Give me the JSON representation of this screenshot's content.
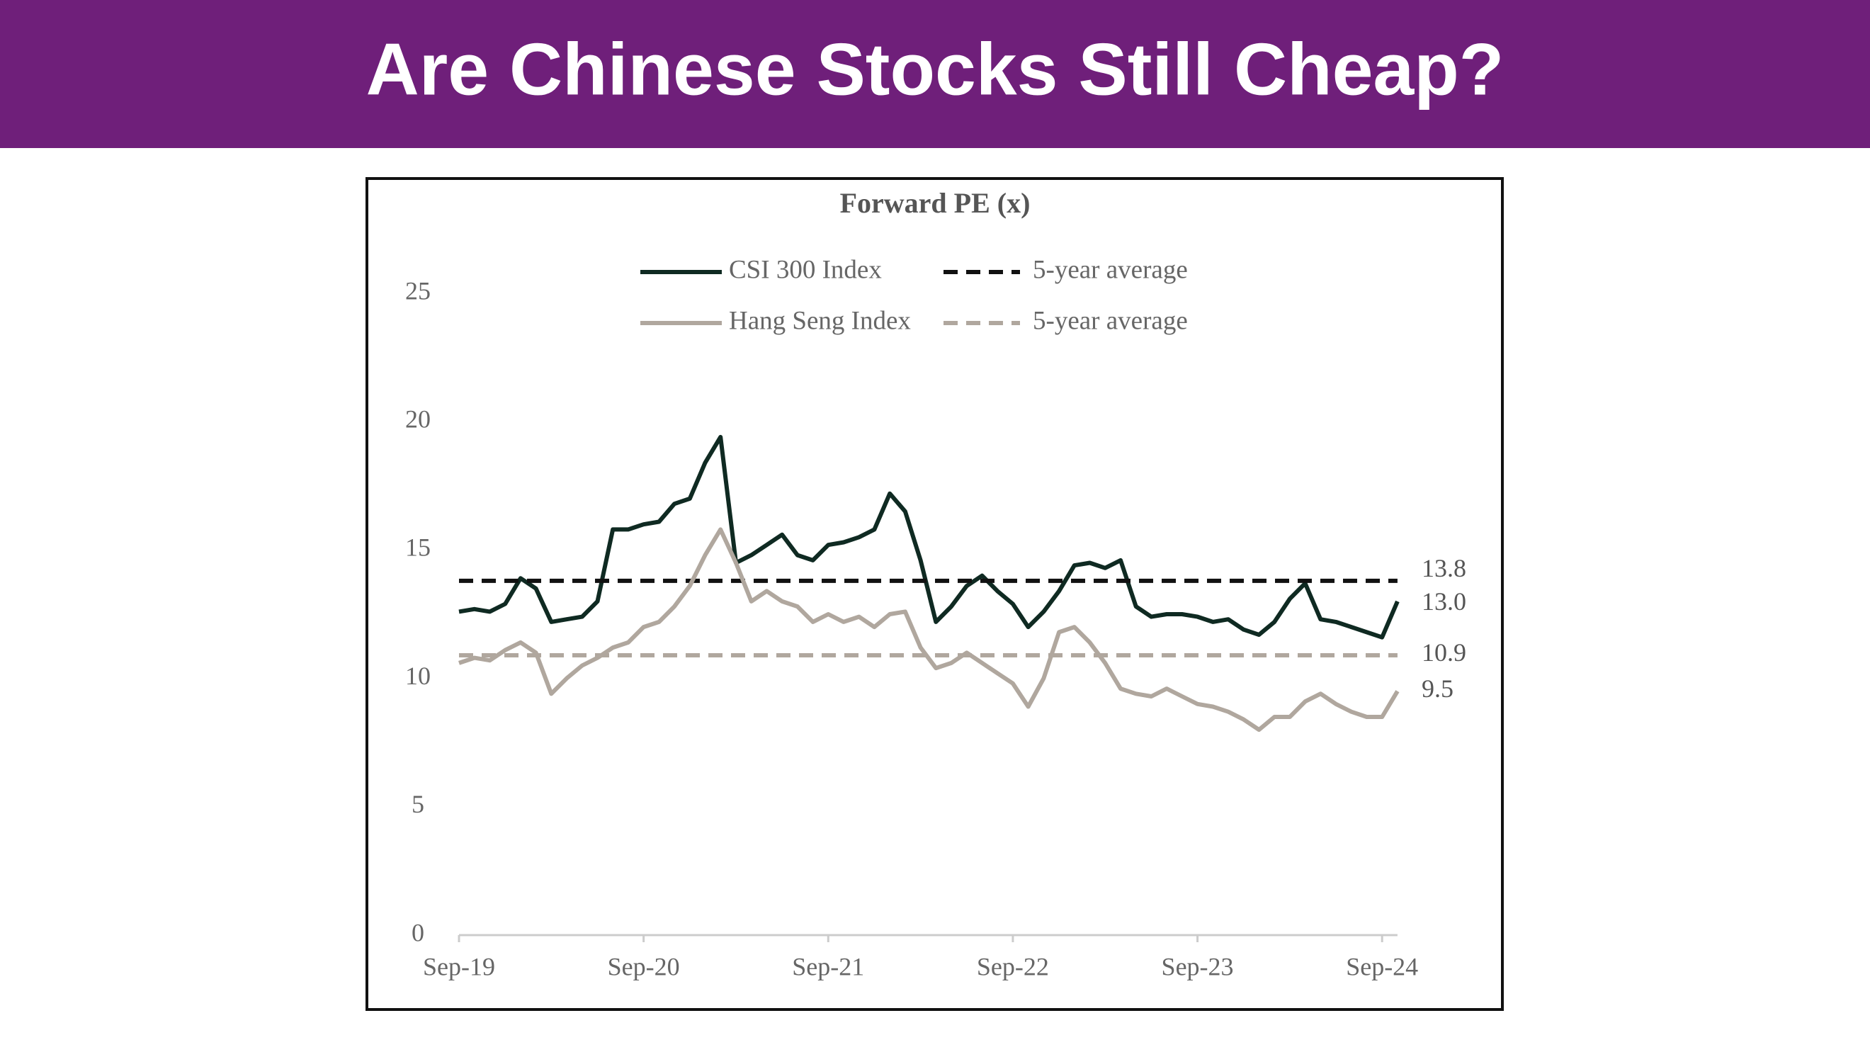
{
  "header": {
    "title": "Are Chinese Stocks Still Cheap?"
  },
  "chart_data": {
    "type": "line",
    "title": "Forward PE (x)",
    "categories": [
      "Sep-19",
      null,
      null,
      null,
      null,
      null,
      null,
      null,
      null,
      null,
      null,
      null,
      "Sep-20",
      null,
      null,
      null,
      null,
      null,
      null,
      null,
      null,
      null,
      null,
      null,
      "Sep-21",
      null,
      null,
      null,
      null,
      null,
      null,
      null,
      null,
      null,
      null,
      null,
      "Sep-22",
      null,
      null,
      null,
      null,
      null,
      null,
      null,
      null,
      null,
      null,
      null,
      "Sep-23",
      null,
      null,
      null,
      null,
      null,
      null,
      null,
      null,
      null,
      null,
      null,
      "Sep-24",
      null
    ],
    "ylim": [
      0,
      25
    ],
    "yticks": [
      0,
      5,
      10,
      15,
      20,
      25
    ],
    "series": [
      {
        "name": "CSI 300 Index",
        "color": "#0f2a22",
        "values": [
          12.6,
          12.7,
          12.6,
          12.9,
          13.9,
          13.5,
          12.2,
          12.3,
          12.4,
          13.0,
          15.8,
          15.8,
          16.0,
          16.1,
          16.8,
          17.0,
          18.4,
          19.4,
          14.5,
          14.8,
          15.2,
          15.6,
          14.8,
          14.6,
          15.2,
          15.3,
          15.5,
          15.8,
          17.2,
          16.5,
          14.6,
          12.2,
          12.8,
          13.6,
          14.0,
          13.4,
          12.9,
          12.0,
          12.6,
          13.4,
          14.4,
          14.5,
          14.3,
          14.6,
          12.8,
          12.4,
          12.5,
          12.5,
          12.4,
          12.2,
          12.3,
          11.9,
          11.7,
          12.2,
          13.1,
          13.7,
          12.3,
          12.2,
          12.0,
          11.8,
          11.6,
          13.0
        ],
        "end_label": "13.0"
      },
      {
        "name": "5-year average",
        "color": "#111111",
        "dashed": true,
        "value": 13.8,
        "end_label": "13.8"
      },
      {
        "name": "Hang Seng Index",
        "color": "#b0a79e",
        "values": [
          10.6,
          10.8,
          10.7,
          11.1,
          11.4,
          11.0,
          9.4,
          10.0,
          10.5,
          10.8,
          11.2,
          11.4,
          12.0,
          12.2,
          12.8,
          13.6,
          14.8,
          15.8,
          14.5,
          13.0,
          13.4,
          13.0,
          12.8,
          12.2,
          12.5,
          12.2,
          12.4,
          12.0,
          12.5,
          12.6,
          11.2,
          10.4,
          10.6,
          11.0,
          10.6,
          10.2,
          9.8,
          8.9,
          10.0,
          11.8,
          12.0,
          11.4,
          10.6,
          9.6,
          9.4,
          9.3,
          9.6,
          9.3,
          9.0,
          8.9,
          8.7,
          8.4,
          8.0,
          8.5,
          8.5,
          9.1,
          9.4,
          9.0,
          8.7,
          8.5,
          8.5,
          9.5
        ],
        "end_label": "9.5"
      },
      {
        "name": "5-year average",
        "color": "#b0a79e",
        "dashed": true,
        "value": 10.9,
        "end_label": "10.9"
      }
    ]
  }
}
